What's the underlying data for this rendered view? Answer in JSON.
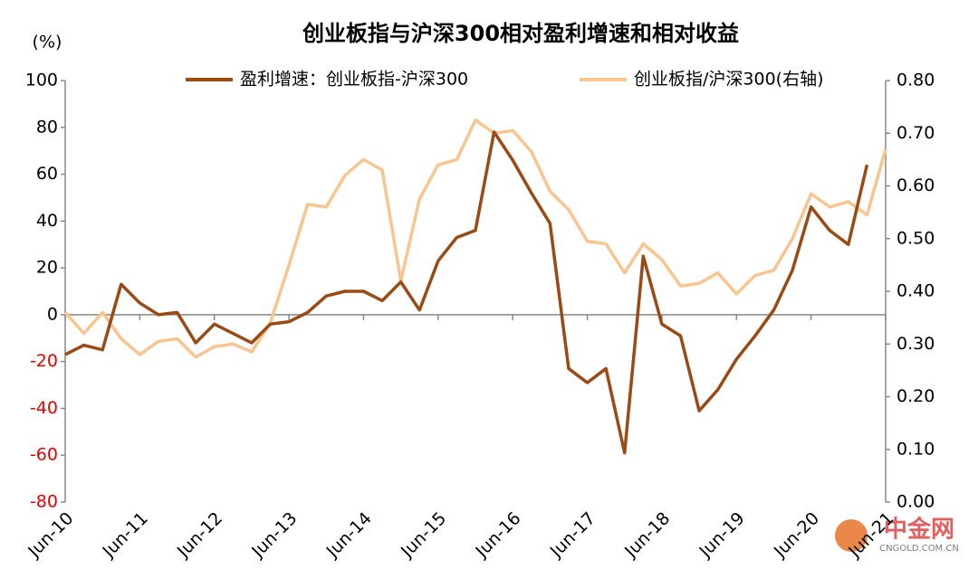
{
  "chart_data": {
    "type": "line",
    "title": "创业板指与沪深300相对盈利增速和相对收益",
    "y_unit": "(%)",
    "watermark": [
      "中金网",
      "CNGOLD.COM.CN"
    ],
    "categories": [
      "Jun-10",
      null,
      null,
      null,
      "Jun-11",
      null,
      null,
      null,
      "Jun-12",
      null,
      null,
      null,
      "Jun-13",
      null,
      null,
      null,
      "Jun-14",
      null,
      null,
      null,
      "Jun-15",
      null,
      null,
      null,
      "Jun-16",
      null,
      null,
      null,
      "Jun-17",
      null,
      null,
      null,
      "Jun-18",
      null,
      null,
      null,
      "Jun-19",
      null,
      null,
      null,
      "Jun-20",
      null,
      null,
      null,
      "Jun-21"
    ],
    "series": [
      {
        "name": "盈利增速：创业板指-沪深300",
        "color": "#9a4a14",
        "axis": "y",
        "values": [
          -17,
          -13,
          -15,
          13,
          5,
          0,
          1,
          -12,
          -4,
          -8,
          -12,
          -4,
          -3,
          1,
          8,
          10,
          10,
          6,
          14,
          2,
          23,
          33,
          36,
          78,
          66,
          52,
          39,
          -23,
          -29,
          -23,
          -59,
          25,
          -4,
          -9,
          -41,
          -32,
          -19,
          -9,
          2,
          19,
          46,
          36,
          30,
          64,
          null
        ]
      },
      {
        "name": "创业板指/沪深300(右轴)",
        "color": "#f8c590",
        "axis": "y2",
        "values": [
          0.36,
          0.32,
          0.36,
          0.31,
          0.28,
          0.305,
          0.31,
          0.275,
          0.295,
          0.3,
          0.285,
          0.34,
          0.45,
          0.565,
          0.56,
          0.62,
          0.65,
          0.63,
          0.42,
          0.575,
          0.64,
          0.65,
          0.725,
          0.7,
          0.705,
          0.665,
          0.59,
          0.555,
          0.495,
          0.49,
          0.435,
          0.49,
          0.46,
          0.41,
          0.415,
          0.435,
          0.395,
          0.43,
          0.44,
          0.5,
          0.585,
          0.56,
          0.57,
          0.545,
          0.67
        ]
      }
    ],
    "ylim": [
      -80,
      100
    ],
    "yticks": [
      -80,
      -60,
      -40,
      -20,
      0,
      20,
      40,
      60,
      80,
      100
    ],
    "negative_tick_color": "#e60000",
    "y2lim": [
      0,
      0.8
    ],
    "y2ticks": [
      {
        "value": 0,
        "label": "0.00"
      },
      {
        "value": 0.1,
        "label": "0.10"
      },
      {
        "value": 0.2,
        "label": "0.20"
      },
      {
        "value": 0.3,
        "label": "0.30"
      },
      {
        "value": 0.4,
        "label": "0.40"
      },
      {
        "value": 0.5,
        "label": "0.50"
      },
      {
        "value": 0.6,
        "label": "0.60"
      },
      {
        "value": 0.7,
        "label": "0.70"
      },
      {
        "value": 0.8,
        "label": "0.80"
      }
    ],
    "legend": "top"
  }
}
